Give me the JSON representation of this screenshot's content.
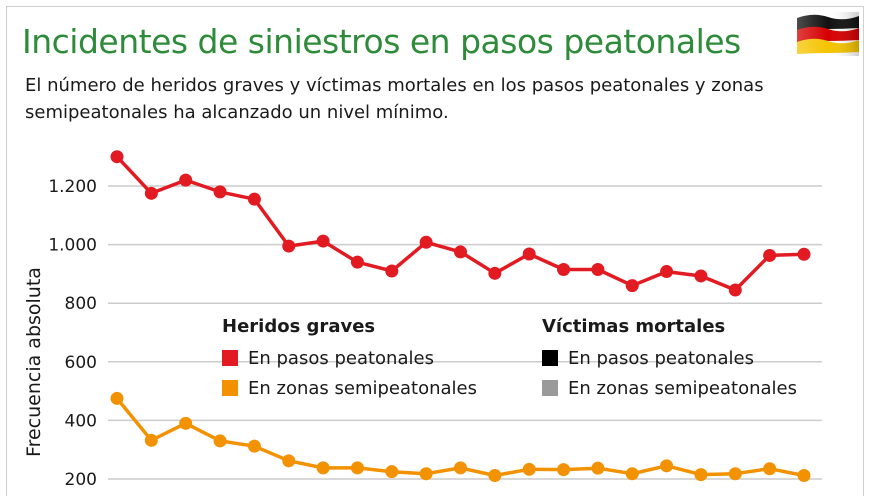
{
  "title": "Incidentes de siniestros en pasos peatonales",
  "subtitle": "El número de heridos graves y víctimas mortales en los pasos peatonales y zonas semipeatonales ha alcanzado un nivel mínimo.",
  "flag_icon": "germany-flag-icon",
  "colors": {
    "title": "#2e8b3a",
    "heridos_pasos": "#e21a22",
    "heridos_zonas": "#f39200",
    "victimas_pasos": "#000000",
    "victimas_zonas": "#9a9a9a",
    "grid": "#cccccc"
  },
  "legend": {
    "groups": [
      {
        "title": "Heridos graves",
        "items": [
          {
            "label": "En pasos peatonales",
            "color": "#e21a22"
          },
          {
            "label": "En zonas semipeatonales",
            "color": "#f39200"
          }
        ]
      },
      {
        "title": "Víctimas mortales",
        "items": [
          {
            "label": "En pasos peatonales",
            "color": "#000000"
          },
          {
            "label": "En zonas semipeatonales",
            "color": "#9a9a9a"
          }
        ]
      }
    ]
  },
  "chart_data": {
    "type": "line",
    "title": "Incidentes de siniestros en pasos peatonales",
    "ylabel": "Frecuencia absoluta",
    "xlabel": "",
    "ylim": [
      180,
      1320
    ],
    "yticks": [
      200,
      400,
      600,
      800,
      1000,
      1200
    ],
    "ytick_labels": [
      "200",
      "400",
      "600",
      "800",
      "1.000",
      "1.200"
    ],
    "grid": "horizontal",
    "legend_position": "center",
    "series": [
      {
        "name": "Heridos graves – En pasos peatonales",
        "color": "#e21a22",
        "values": [
          1300,
          1175,
          1220,
          1180,
          1155,
          995,
          1012,
          940,
          910,
          1008,
          975,
          902,
          968,
          915,
          915,
          860,
          908,
          893,
          845,
          963,
          967
        ]
      },
      {
        "name": "Heridos graves – En zonas semipeatonales",
        "color": "#f39200",
        "values": [
          475,
          332,
          390,
          330,
          312,
          262,
          238,
          238,
          225,
          218,
          238,
          212,
          233,
          232,
          237,
          218,
          245,
          215,
          218,
          235,
          212
        ]
      }
    ]
  }
}
